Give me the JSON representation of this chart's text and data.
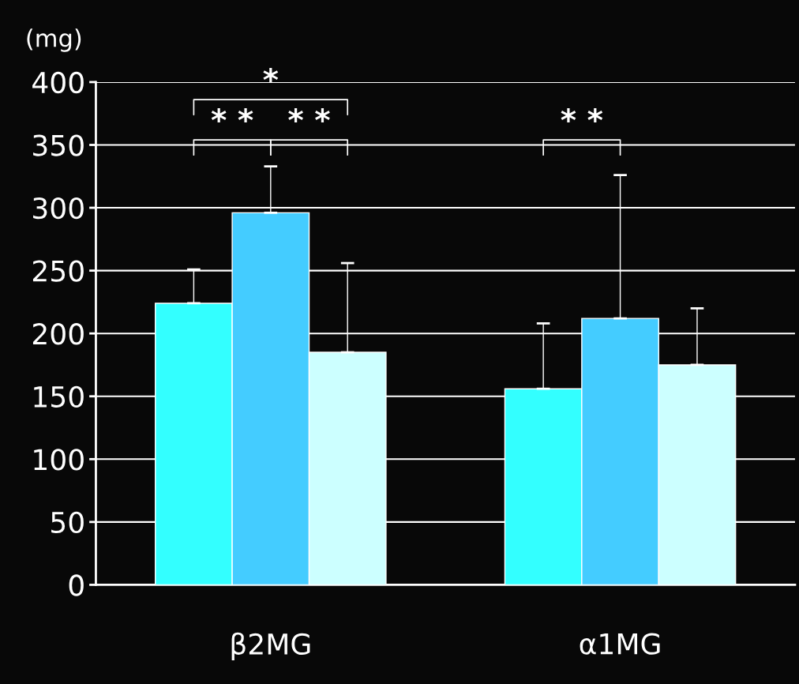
{
  "chart_data": {
    "type": "bar",
    "ylabel": "(mg)",
    "categories": [
      "β2MG",
      "α1MG"
    ],
    "series": [
      {
        "color": "#33ffff",
        "values": [
          224,
          156
        ],
        "errors": [
          [
            224,
            251
          ],
          [
            156,
            208
          ]
        ]
      },
      {
        "color": "#44ccff",
        "values": [
          296,
          212
        ],
        "errors": [
          [
            296,
            333
          ],
          [
            212,
            326
          ]
        ]
      },
      {
        "color": "#ccffff",
        "values": [
          185,
          175
        ],
        "errors": [
          [
            185,
            256
          ],
          [
            175,
            220
          ]
        ]
      }
    ],
    "ylim": [
      0,
      400
    ],
    "yticks": [
      0,
      50,
      100,
      150,
      200,
      250,
      300,
      350,
      400
    ],
    "grid": "y",
    "legend": false,
    "annotations": [
      "*",
      "* *",
      "* *",
      "* *"
    ]
  }
}
